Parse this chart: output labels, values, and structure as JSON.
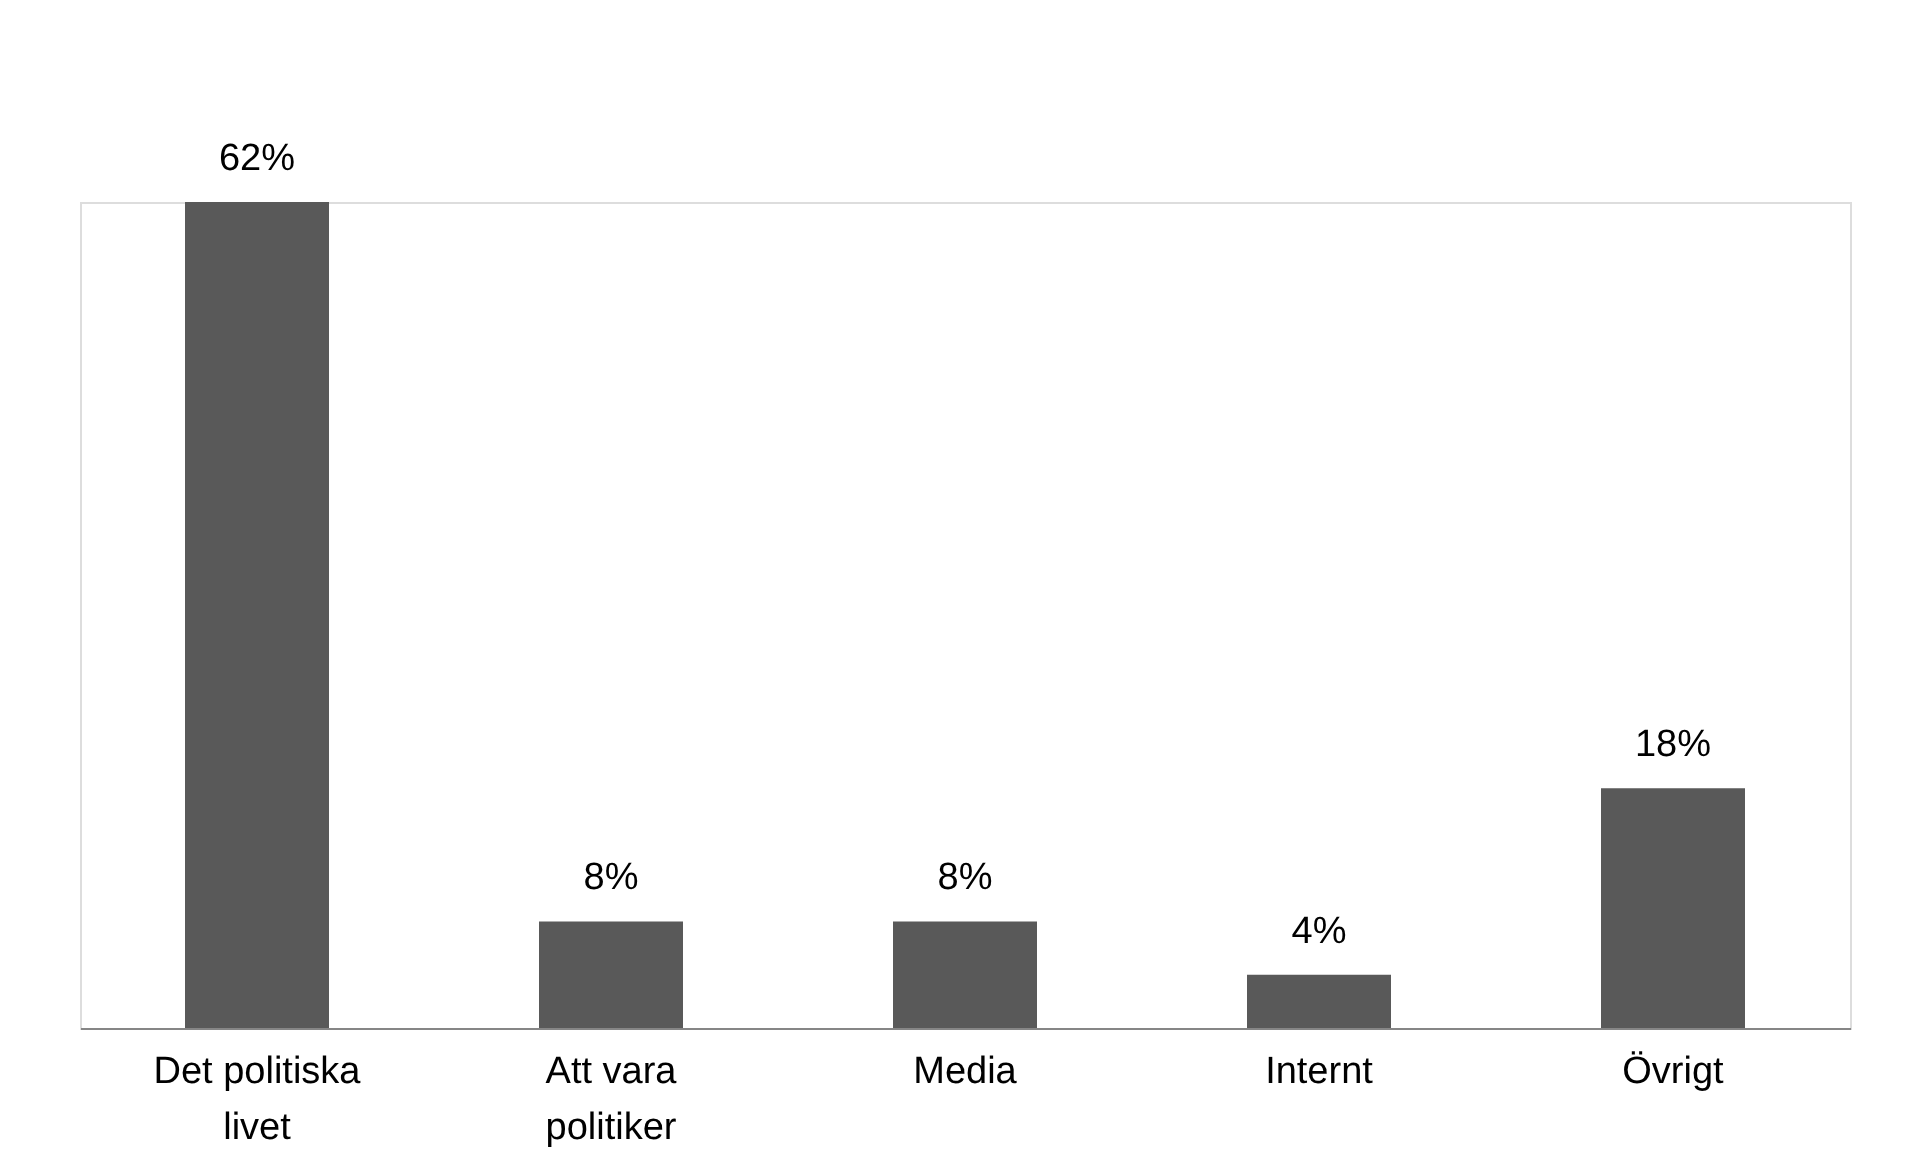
{
  "chart_data": {
    "type": "bar",
    "categories": [
      "Det politiska livet",
      "Att vara politiker",
      "Media",
      "Internt",
      "Övrigt"
    ],
    "values": [
      62,
      8,
      8,
      4,
      18
    ],
    "value_labels": [
      "62%",
      "8%",
      "8%",
      "4%",
      "18%"
    ],
    "color": "#595959",
    "grid": false,
    "tick_labels": "x"
  }
}
